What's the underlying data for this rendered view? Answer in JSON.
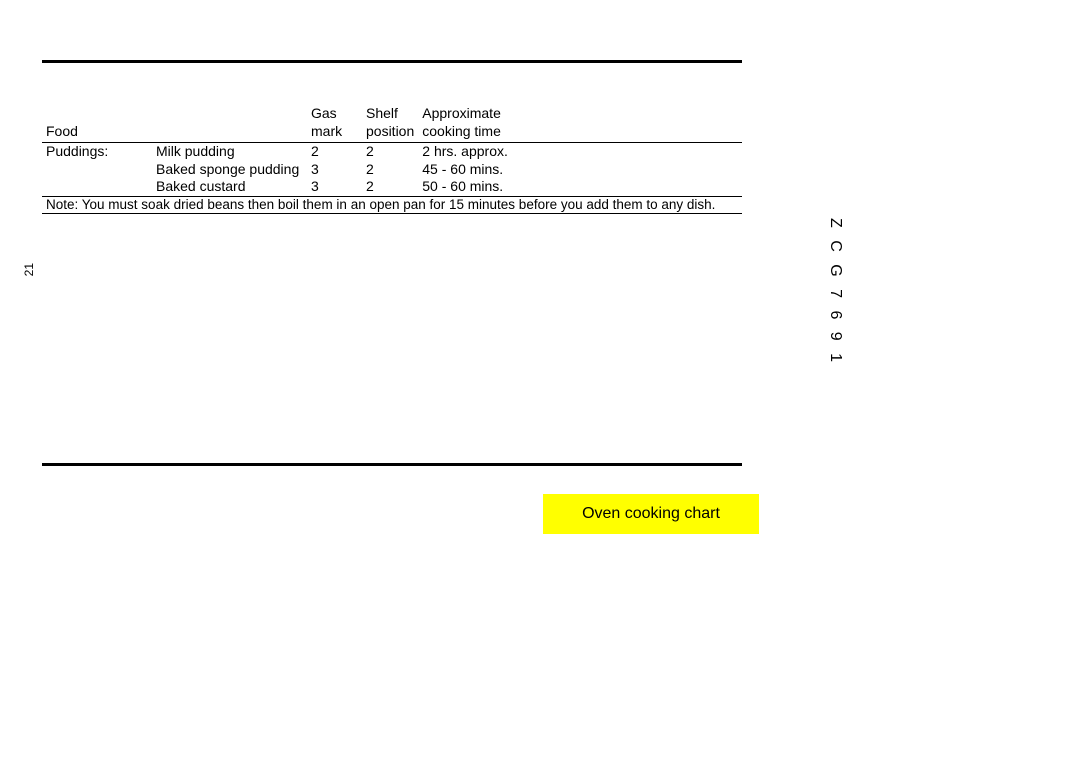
{
  "page_number": "21",
  "model_code": "Z C G  7 6 9 1",
  "section_label": "Oven cooking chart",
  "table": {
    "headers": {
      "food": "Food",
      "gas_line1": "Gas",
      "gas_line2": "mark",
      "shelf_line1": "Shelf",
      "shelf_line2": "position",
      "time_line1": "Approximate",
      "time_line2": "cooking time"
    },
    "rows": [
      {
        "food": "Puddings:",
        "item": "Milk pudding",
        "gas": "2",
        "shelf": "2",
        "time": "2 hrs. approx."
      },
      {
        "food": "",
        "item": "Baked sponge pudding",
        "gas": "3",
        "shelf": "2",
        "time": "45 - 60 mins."
      },
      {
        "food": "",
        "item": "Baked custard",
        "gas": "3",
        "shelf": "2",
        "time": "50 - 60 mins."
      }
    ],
    "note": "Note: You must soak  dried beans then boil them in an open pan for 15 minutes before you add them to any dish."
  },
  "colors": {
    "highlight": "#ffff00",
    "text": "#000000",
    "background": "#ffffff",
    "rule": "#000000"
  }
}
